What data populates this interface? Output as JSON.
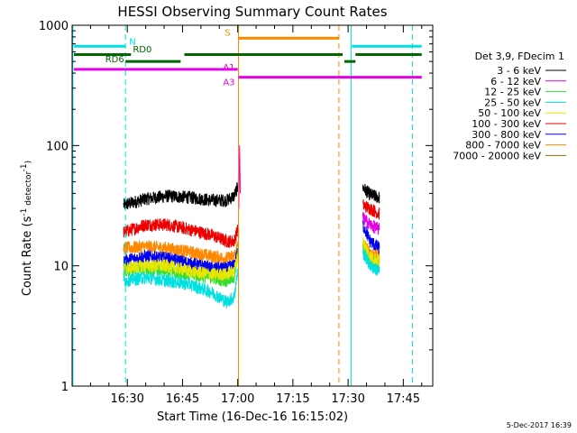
{
  "chart_data": {
    "type": "line",
    "title": "HESSI Observing Summary Count Rates",
    "xlabel": "Start Time (16-Dec-16 16:15:02)",
    "ylabel": "Count Rate (s⁻¹ detector⁻¹)",
    "ylabel_parts": {
      "main": "Count Rate (s",
      "sup1": "-1",
      "mid": " detector",
      "sup2": "-1",
      "end": ")"
    },
    "yscale": "log",
    "ylim": [
      1,
      1000
    ],
    "xlim_min": [
      0,
      98
    ],
    "x_ticks": [
      {
        "min": 15,
        "label": "16:30"
      },
      {
        "min": 30,
        "label": "16:45"
      },
      {
        "min": 45,
        "label": "17:00"
      },
      {
        "min": 60,
        "label": "17:15"
      },
      {
        "min": 75,
        "label": "17:30"
      },
      {
        "min": 90,
        "label": "17:45"
      }
    ],
    "y_ticks": [
      {
        "value": 1,
        "label": "1"
      },
      {
        "value": 10,
        "label": "10"
      },
      {
        "value": 100,
        "label": "100"
      },
      {
        "value": 1000,
        "label": "1000"
      }
    ],
    "legend": {
      "placement": "right",
      "header": "Det 3,9, FDecim 1",
      "entries": [
        {
          "label": "3 - 6 keV",
          "color": "#000000"
        },
        {
          "label": "6 - 12 keV",
          "color": "#e600e6"
        },
        {
          "label": "12 - 25 keV",
          "color": "#33dd33"
        },
        {
          "label": "25 - 50 keV",
          "color": "#00e0e0"
        },
        {
          "label": "50 - 100 keV",
          "color": "#e6e600"
        },
        {
          "label": "100 - 300 keV",
          "color": "#ee0000"
        },
        {
          "label": "300 - 800 keV",
          "color": "#0000ee"
        },
        {
          "label": "800 - 7000 keV",
          "color": "#ff8800"
        },
        {
          "label": "7000 - 20000 keV",
          "color": "#996600"
        }
      ]
    },
    "series": [
      {
        "name": "3 - 6 keV",
        "color": "#000000",
        "segments": [
          [
            [
              14,
              32
            ],
            [
              20,
              36
            ],
            [
              26,
              38
            ],
            [
              32,
              37
            ],
            [
              38,
              35
            ],
            [
              42,
              35
            ],
            [
              44,
              38
            ],
            [
              45,
              45
            ],
            [
              45.2,
              50
            ]
          ],
          [
            [
              79,
              45
            ],
            [
              80.5,
              40
            ],
            [
              82,
              38
            ],
            [
              83.5,
              37
            ]
          ]
        ]
      },
      {
        "name": "100 - 300 keV",
        "color": "#ee0000",
        "segments": [
          [
            [
              14,
              19
            ],
            [
              20,
              22
            ],
            [
              26,
              22
            ],
            [
              32,
              20
            ],
            [
              38,
              18
            ],
            [
              42,
              16
            ],
            [
              44,
              16
            ],
            [
              45,
              20
            ]
          ],
          [
            [
              79,
              32
            ],
            [
              81,
              30
            ],
            [
              83.5,
              27
            ]
          ]
        ]
      },
      {
        "name": "800 - 7000 keV",
        "color": "#ff8800",
        "segments": [
          [
            [
              14,
              14
            ],
            [
              20,
              14.5
            ],
            [
              26,
              14
            ],
            [
              32,
              13
            ],
            [
              38,
              12
            ],
            [
              42,
              11.5
            ],
            [
              44,
              12
            ],
            [
              45,
              15
            ]
          ],
          [
            [
              79,
              15
            ],
            [
              81,
              13
            ],
            [
              83.5,
              12
            ]
          ]
        ]
      },
      {
        "name": "300 - 800 keV",
        "color": "#0000ee",
        "segments": [
          [
            [
              14,
              11
            ],
            [
              20,
              12
            ],
            [
              26,
              11.5
            ],
            [
              32,
              10.5
            ],
            [
              38,
              9.5
            ],
            [
              42,
              9.5
            ],
            [
              44,
              10
            ],
            [
              45,
              13
            ]
          ],
          [
            [
              79,
              22
            ],
            [
              81,
              16
            ],
            [
              83.5,
              14
            ]
          ]
        ]
      },
      {
        "name": "12 - 25 keV",
        "color": "#33dd33",
        "segments": [
          [
            [
              14,
              9
            ],
            [
              20,
              9.5
            ],
            [
              26,
              9
            ],
            [
              32,
              8.5
            ],
            [
              38,
              8
            ],
            [
              42,
              7.5
            ],
            [
              44,
              8
            ],
            [
              45,
              12
            ],
            [
              45.3,
              20
            ]
          ],
          [
            [
              79,
              14
            ],
            [
              81,
              11
            ],
            [
              83.5,
              10
            ]
          ]
        ]
      },
      {
        "name": "50 - 100 keV",
        "color": "#e6e600",
        "segments": [
          [
            [
              14,
              9.5
            ],
            [
              20,
              10
            ],
            [
              26,
              10
            ],
            [
              32,
              9
            ],
            [
              38,
              8.5
            ],
            [
              42,
              8.5
            ],
            [
              44,
              9
            ],
            [
              45,
              12
            ]
          ],
          [
            [
              79,
              16
            ],
            [
              81,
              12
            ],
            [
              83.5,
              11
            ]
          ]
        ]
      },
      {
        "name": "25 - 50 keV",
        "color": "#00e0e0",
        "segments": [
          [
            [
              14,
              7.5
            ],
            [
              20,
              8
            ],
            [
              26,
              7.5
            ],
            [
              32,
              7
            ],
            [
              38,
              6
            ],
            [
              42,
              5
            ],
            [
              44,
              5.5
            ],
            [
              45,
              9
            ]
          ],
          [
            [
              79,
              13
            ],
            [
              81,
              10
            ],
            [
              83.5,
              9
            ]
          ]
        ]
      },
      {
        "name": "6 - 12 keV",
        "color": "#e600e6",
        "segments": [
          [
            [
              45.3,
              30
            ],
            [
              45.5,
              100
            ],
            [
              45.7,
              40
            ]
          ],
          [
            [
              79,
              25
            ],
            [
              81,
              22
            ],
            [
              83.5,
              20
            ]
          ]
        ]
      }
    ],
    "vertical_lines": [
      {
        "min": 0.2,
        "color": "#00e0e0",
        "style": "solid"
      },
      {
        "min": 14.5,
        "color": "#00e0e0",
        "style": "dashed"
      },
      {
        "min": 45.2,
        "color": "#ff8800",
        "style": "solid"
      },
      {
        "min": 72.5,
        "color": "#ff8800",
        "style": "dashed"
      },
      {
        "min": 75.8,
        "color": "#00e0e0",
        "style": "solid"
      },
      {
        "min": 92.5,
        "color": "#00e0e0",
        "style": "dashed"
      }
    ],
    "flag_bars": [
      {
        "label": "N",
        "color": "#00e0e0",
        "level": 670,
        "label_color": "#00e0e0",
        "label_min": 15.5,
        "label_level": 740,
        "segments": [
          [
            0.5,
            14.5
          ],
          [
            76,
            95
          ]
        ]
      },
      {
        "label": "S",
        "color": "#ff8800",
        "level": 780,
        "label_color": "#ff8800",
        "label_min": 41.5,
        "label_level": 880,
        "segments": [
          [
            45.2,
            72.5
          ]
        ]
      },
      {
        "label": "RD0",
        "color": "#006600",
        "level": 570,
        "label_color": "#006600",
        "label_min": 16.5,
        "label_level": 640,
        "segments": [
          [
            0.5,
            16
          ],
          [
            30.5,
            73.5
          ],
          [
            77,
            95
          ]
        ]
      },
      {
        "label": "RD6",
        "color": "#006600",
        "level": 500,
        "label_color": "#006600",
        "label_min": 9,
        "label_level": 530,
        "segments": [
          [
            14.5,
            29.5
          ],
          [
            74,
            77
          ]
        ]
      },
      {
        "label": "A1",
        "color": "#e600e6",
        "level": 430,
        "label_color": "#e600e6",
        "label_min": 41,
        "label_level": 450,
        "segments": [
          [
            0.5,
            40
          ],
          [
            40,
            45
          ]
        ]
      },
      {
        "label": "A3",
        "color": "#e600e6",
        "level": 370,
        "label_color": "#e600e6",
        "label_min": 41,
        "label_level": 340,
        "segments": [
          [
            45.2,
            95
          ]
        ]
      }
    ],
    "footer_timestamp": "5-Dec-2017 16:39"
  }
}
